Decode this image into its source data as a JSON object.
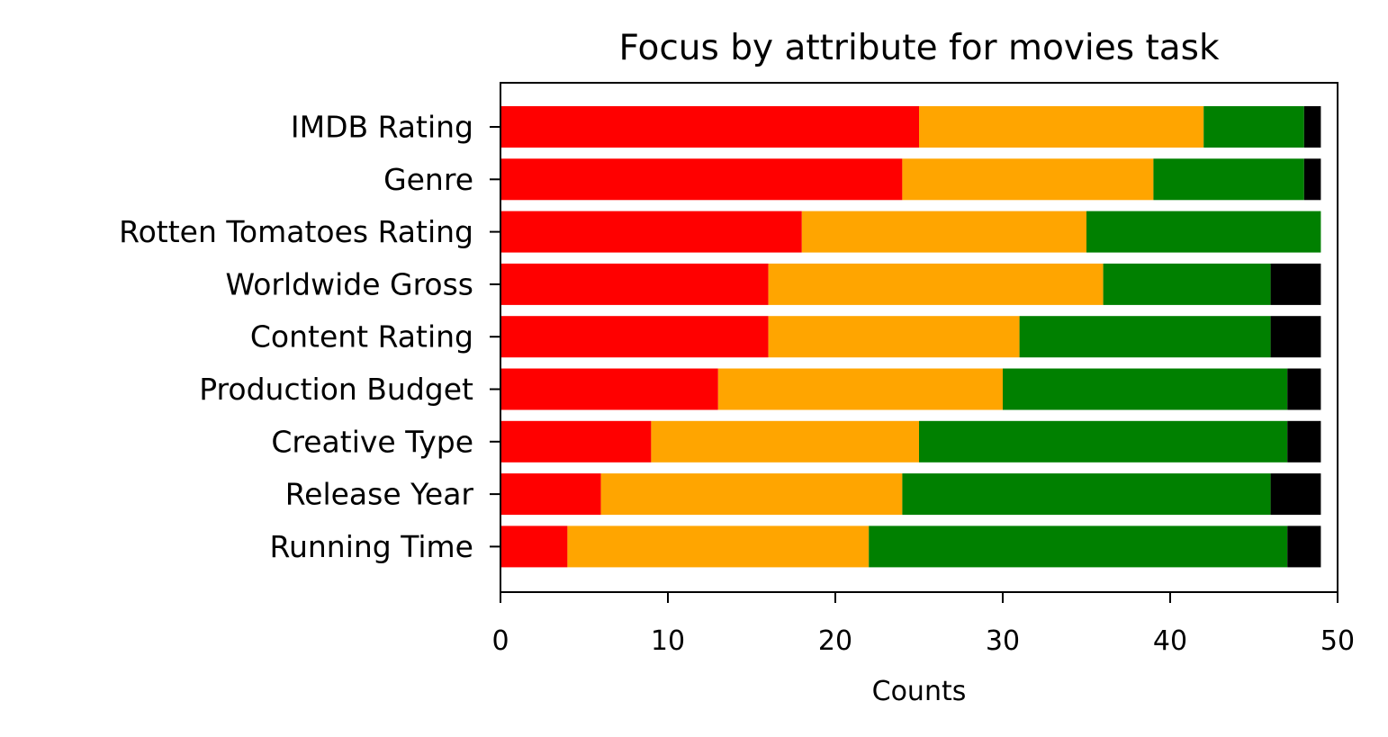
{
  "chart_data": {
    "type": "bar",
    "orientation": "horizontal",
    "stacked": true,
    "title": "Focus by attribute for movies task",
    "xlabel": "Counts",
    "ylabel": "",
    "xlim": [
      0,
      50
    ],
    "xticks": [
      0,
      10,
      20,
      30,
      40,
      50
    ],
    "grid": false,
    "categories": [
      "IMDB Rating",
      "Genre",
      "Rotten Tomatoes Rating",
      "Worldwide Gross",
      "Content Rating",
      "Production Budget",
      "Creative Type",
      "Release Year",
      "Running Time"
    ],
    "series": [
      {
        "name": "red",
        "color": "#ff0000",
        "values": [
          25,
          24,
          18,
          16,
          16,
          13,
          9,
          6,
          4
        ]
      },
      {
        "name": "orange",
        "color": "#ffa500",
        "values": [
          17,
          15,
          17,
          20,
          15,
          17,
          16,
          18,
          18
        ]
      },
      {
        "name": "green",
        "color": "#008000",
        "values": [
          6,
          9,
          14,
          10,
          15,
          17,
          22,
          22,
          25
        ]
      },
      {
        "name": "black",
        "color": "#000000",
        "values": [
          1,
          1,
          0,
          3,
          3,
          2,
          2,
          3,
          2
        ]
      }
    ]
  }
}
